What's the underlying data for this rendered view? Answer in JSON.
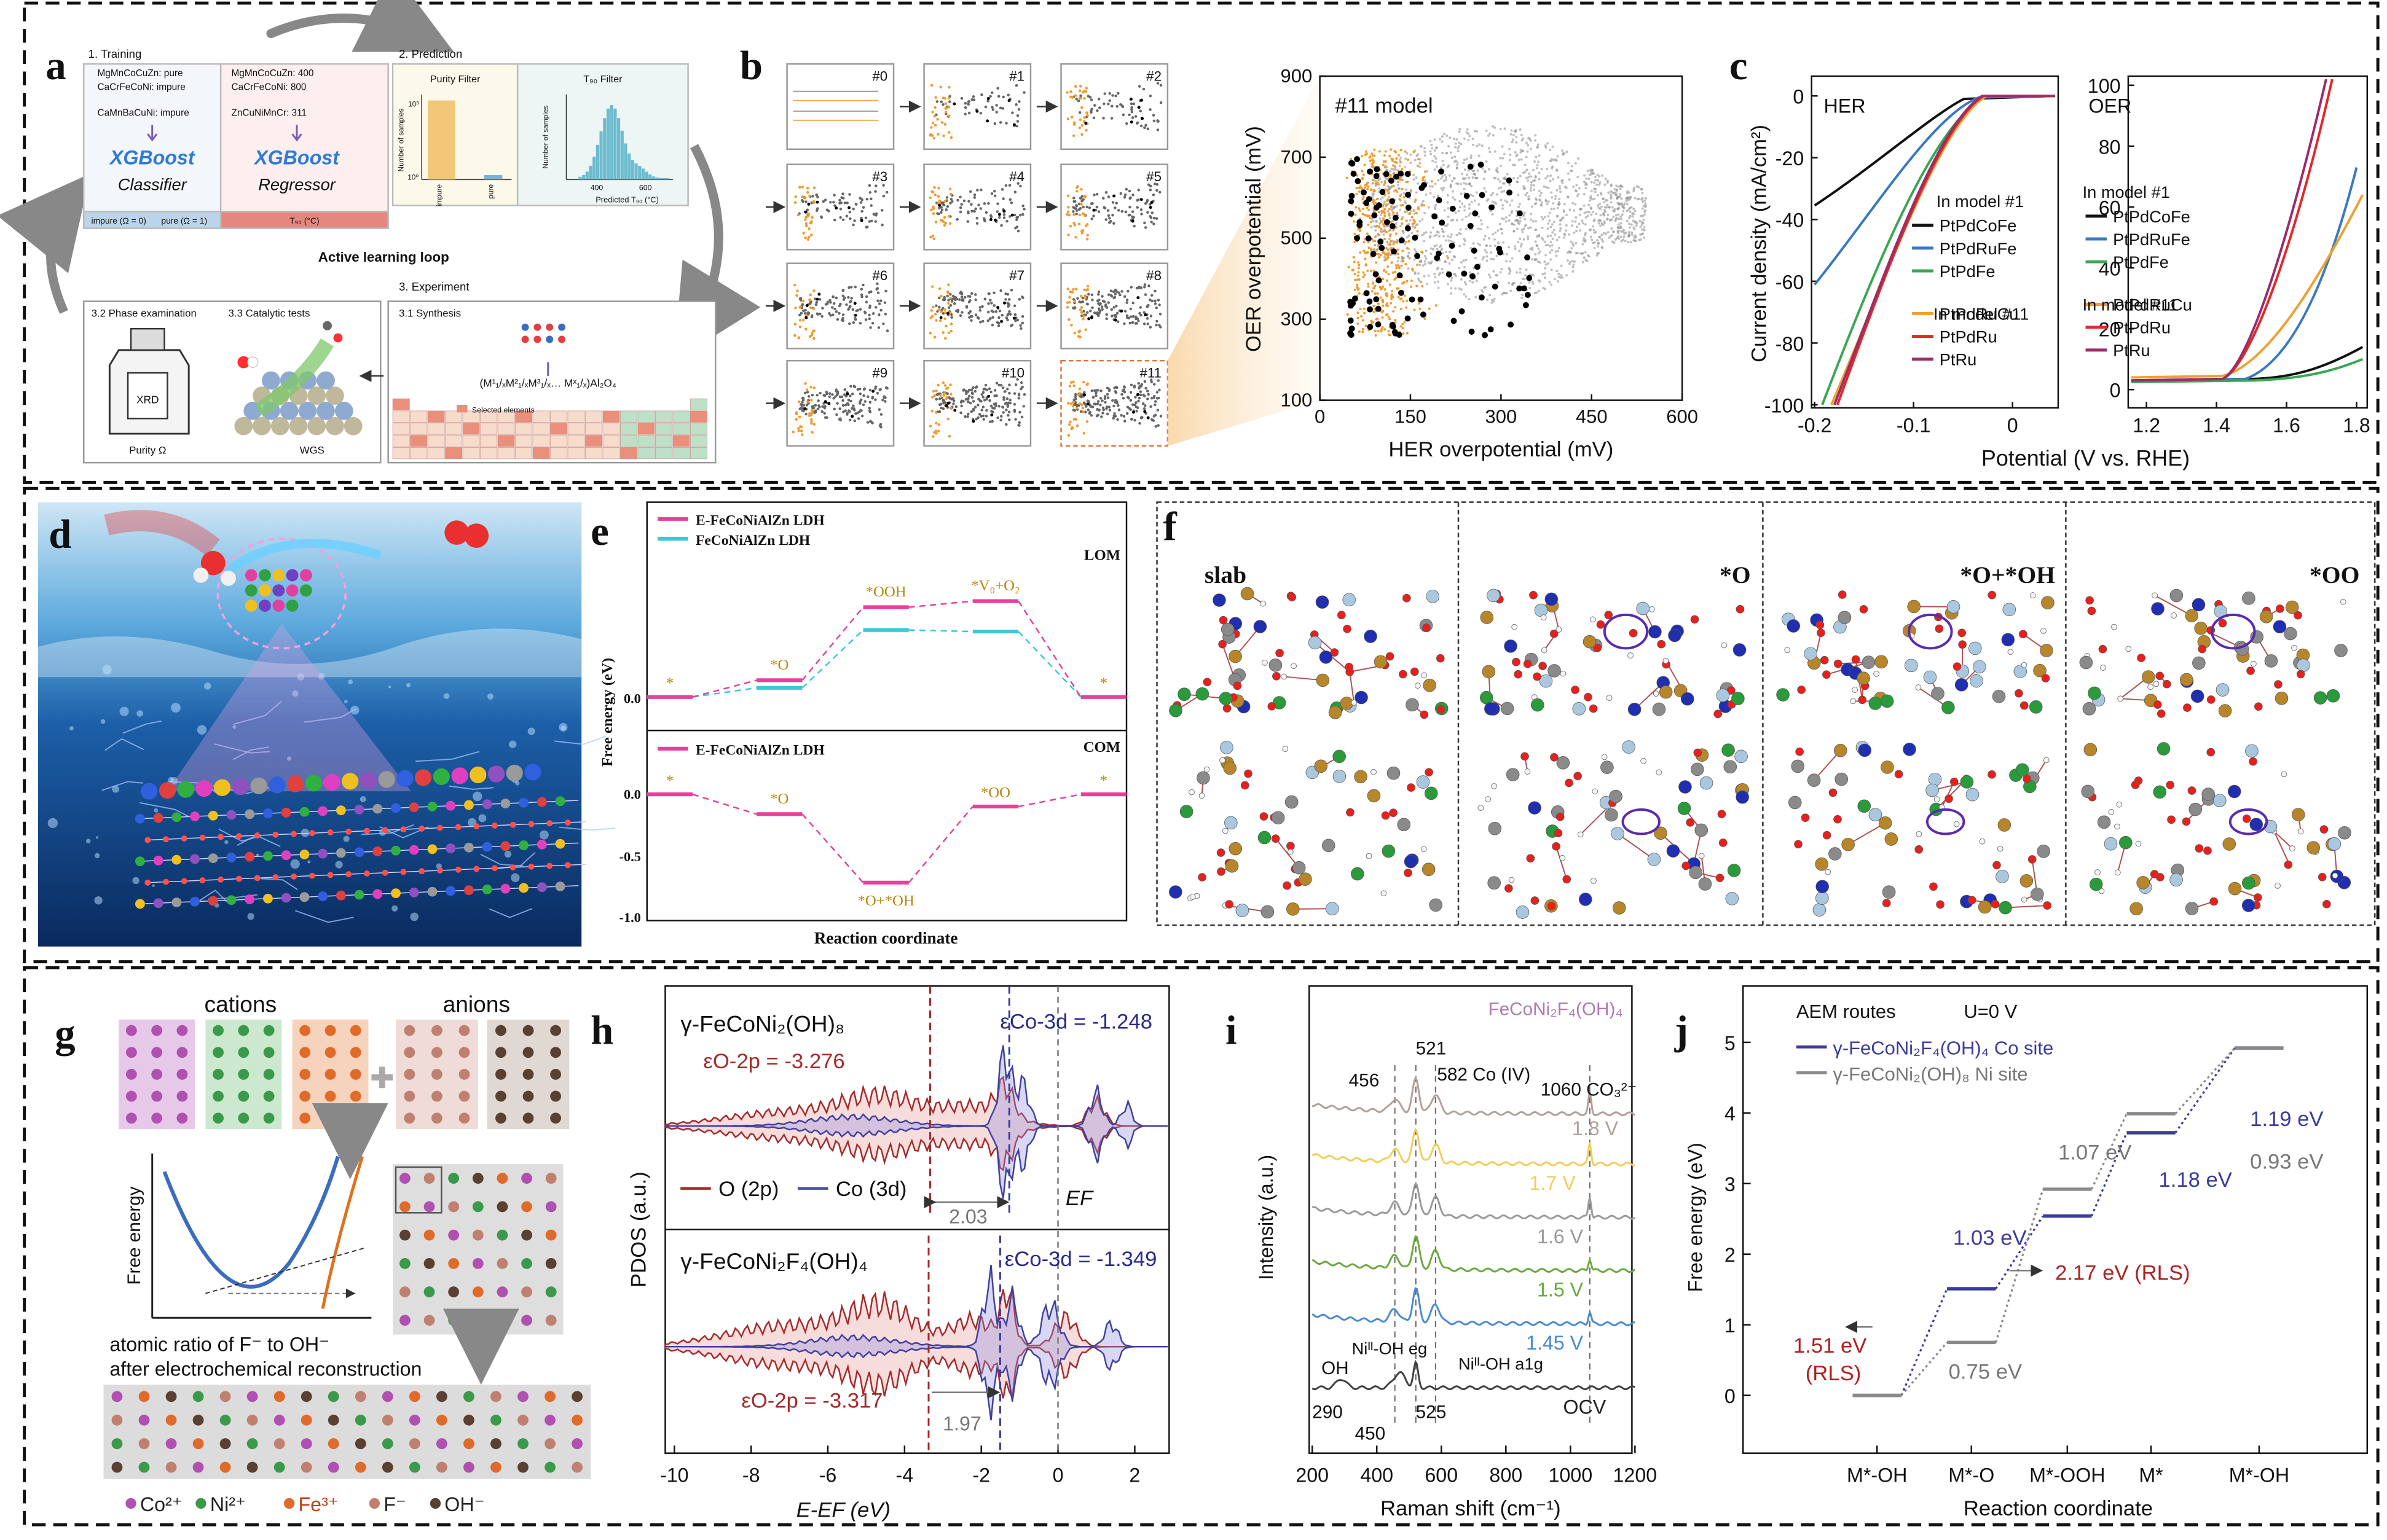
{
  "figure": {
    "a": {
      "label": "a",
      "training": "1. Training",
      "train_pure": [
        "MgMnCoCuZn: pure",
        "CaCrFeCoNi: impure",
        "CaMnBaCuNi: impure"
      ],
      "train_t90": [
        "MgMnCoCuZn: 400",
        "CaCrFeCoNi: 800",
        "ZnCuNiMnCr: 311"
      ],
      "model_left": [
        "XGBoost",
        "Classifier"
      ],
      "model_right": [
        "XGBoost",
        "Regressor"
      ],
      "bar": [
        "impure (Ω = 0)",
        "pure (Ω = 1)",
        "T₉₀ (°C)"
      ],
      "prediction": "2. Prediction",
      "purity_filter": "Purity Filter",
      "t90_filter": "T₉₀ Filter",
      "purity_axis": "Number of samples",
      "purity_ticks": [
        "10³",
        "10⁰"
      ],
      "purity_cats": [
        "impure",
        "pure"
      ],
      "t90_axis": "Number of samples",
      "t90_ticks": [
        400,
        600
      ],
      "t90_xlabel": "Predicted T₉₀ (°C)",
      "loop": "Active learning loop",
      "experiment": "3. Experiment",
      "steps": [
        "3.2 Phase examination",
        "3.3 Catalytic tests",
        "3.1 Synthesis"
      ],
      "xrd": "XRD",
      "purity": "Purity Ω",
      "wgs": "WGS",
      "formula": "(M¹₁/ₓM²₁/ₓM³₁/ₓ… Mˣ₁/ₓ)Al₂O₄",
      "selected": "Selected elements"
    },
    "b": {
      "label": "b",
      "models": [
        "#0",
        "#1",
        "#2",
        "#3",
        "#4",
        "#5",
        "#6",
        "#7",
        "#8",
        "#9",
        "#10",
        "#11"
      ],
      "title": "#11 model",
      "xlabel": "HER overpotential (mV)",
      "ylabel": "OER overpotential (mV)",
      "xticks": [
        0,
        150,
        300,
        450,
        600
      ],
      "yticks": [
        100,
        300,
        500,
        700,
        900
      ]
    },
    "c": {
      "label": "c",
      "her": "HER",
      "oer": "OER",
      "ylabel": "Current density (mA/cm²)",
      "xlabel": "Potential (V vs. RHE)",
      "left_yticks": [
        0,
        -20,
        -40,
        -60,
        -80,
        -100
      ],
      "left_xticks": [
        -0.2,
        -0.1,
        0
      ],
      "right_yticks": [
        0,
        20,
        40,
        60,
        80,
        100
      ],
      "right_xticks": [
        1.2,
        1.4,
        1.6,
        1.8
      ],
      "groups": [
        "In model #1",
        "In model #11"
      ],
      "alloys": [
        {
          "name": "PtPdCoFe",
          "color": "#111111"
        },
        {
          "name": "PtPdRuFe",
          "color": "#3a78c2"
        },
        {
          "name": "PtPdFe",
          "color": "#3aa655"
        },
        {
          "name": "PtPdRuCu",
          "color": "#f0a030"
        },
        {
          "name": "PtPdRu",
          "color": "#e02828"
        },
        {
          "name": "PtRu",
          "color": "#9a2d6a"
        }
      ]
    },
    "d": {
      "label": "d"
    },
    "e": {
      "label": "e",
      "legend_top": [
        "E-FeCoNiAlZn LDH",
        "FeCoNiAlZn LDH"
      ],
      "lom": "LOM",
      "com": "COM",
      "legend_bottom": "E-FeCoNiAlZn LDH",
      "ylabel": "Free energy (eV)",
      "xlabel": "Reaction coordinate",
      "lom_states": [
        "*",
        "*O",
        "*OOH",
        "*V₀+O₂",
        "*"
      ],
      "com_states": [
        "*",
        "*O",
        "*O+*OH",
        "*OO",
        "*"
      ],
      "yticks_top": [
        "0.0"
      ],
      "yticks_bottom": [
        "0.0",
        "-0.5",
        "-1.0"
      ]
    },
    "f": {
      "label": "f",
      "states": [
        "slab",
        "*O",
        "*O+*OH",
        "*OO"
      ]
    },
    "g": {
      "label": "g",
      "cations": "cations",
      "anions": "anions",
      "ylabel": "Free energy",
      "caption": [
        "atomic ratio of F⁻ to OH⁻",
        "after electrochemical reconstruction"
      ],
      "legend": [
        "Co²⁺",
        "Ni²⁺",
        "Fe³⁺",
        "F⁻",
        "OH⁻"
      ]
    },
    "h": {
      "label": "h",
      "top_title": "γ-FeCoNi₂(OH)₈",
      "top_o": "εO-2p = -3.276",
      "top_co": "εCo-3d = -1.248",
      "legend": [
        "O (2p)",
        "Co (3d)"
      ],
      "top_gap": "2.03",
      "ef": "EF",
      "bottom_title": "γ-FeCoNi₂F₄(OH)₄",
      "bottom_co": "εCo-3d = -1.349",
      "bottom_o": "εO-2p = -3.317",
      "bottom_gap": "1.97",
      "ylabel": "PDOS (a.u.)",
      "xlabel": "E-EF (eV)",
      "xticks": [
        -10,
        -8,
        -6,
        -4,
        -2,
        0,
        2
      ]
    },
    "i": {
      "label": "i",
      "title": "FeCoNi₂F₄(OH)₄",
      "peaks": [
        "456",
        "521",
        "582 Co (IV)",
        "1060 CO₃²⁻"
      ],
      "potentials": [
        "1.8 V",
        "1.7 V",
        "1.6 V",
        "1.5 V",
        "1.45 V",
        "OCV"
      ],
      "bands": [
        "OH",
        "Niᴵᴵ-OH eg",
        "Niᴵᴵ-OH a1g"
      ],
      "band_positions": [
        "290",
        "450",
        "525"
      ],
      "ylabel": "Intensity (a.u.)",
      "xlabel": "Raman shift (cm⁻¹)",
      "xticks": [
        200,
        400,
        600,
        800,
        1000,
        1200
      ]
    },
    "j": {
      "label": "j",
      "title": "AEM routes",
      "u": "U=0 V",
      "series": [
        {
          "name": "γ-FeCoNi₂F₄(OH)₄  Co site",
          "color": "#3b3b9c",
          "levels": [
            0,
            1.51,
            2.54,
            3.72,
            4.92
          ]
        },
        {
          "name": "γ-FeCoNi₂(OH)₈  Ni site",
          "color": "#8a8a8a",
          "levels": [
            0,
            0.75,
            2.92,
            3.99,
            4.92
          ]
        }
      ],
      "step_labels": [
        "1.51 eV",
        "(RLS)",
        "0.75 eV",
        "1.03 eV",
        "2.17 eV (RLS)",
        "1.07 eV",
        "1.18 eV",
        "0.93 eV",
        "1.19 eV"
      ],
      "ylabel": "Free energy (eV)",
      "xlabel": "Reaction coordinate",
      "categories": [
        "M*-OH",
        "M*-O",
        "M*-OOH",
        "M*",
        "M*-OH"
      ],
      "yticks": [
        0,
        1,
        2,
        3,
        4,
        5
      ]
    }
  }
}
